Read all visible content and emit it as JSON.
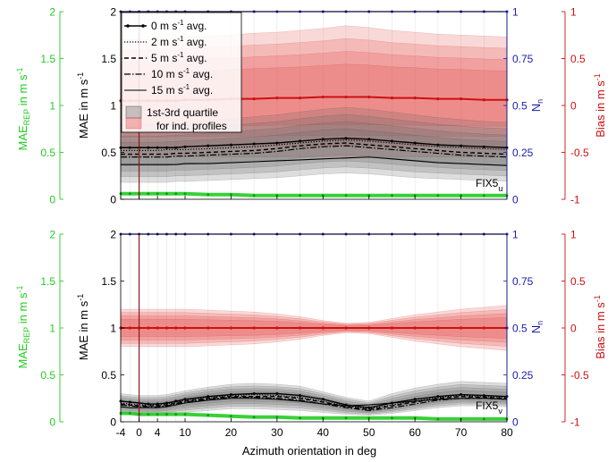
{
  "colors": {
    "mae_rep": "#22cc22",
    "nn": "#1a1aaa",
    "bias": "#cc1111",
    "mae": "#000000",
    "marker": "#8b1a1a"
  },
  "panels": [
    {
      "id": "top",
      "tag": "FIX5",
      "tag_sub": "u",
      "show_xticks": false
    },
    {
      "id": "bottom",
      "tag": "FIX5",
      "tag_sub": "v",
      "show_xticks": true
    }
  ],
  "axes": {
    "left_outer": {
      "label": "MAE",
      "label_sub": "REP",
      "label_rest": " in m s",
      "label_sup": "-1",
      "ticks": [
        "0",
        "0.5",
        "1",
        "1.5",
        "2"
      ]
    },
    "left_inner": {
      "label": "MAE in m s",
      "label_sup": "-1",
      "ticks": [
        "0",
        "0.5",
        "1",
        "1.5",
        "2"
      ]
    },
    "right_inner": {
      "label": "N",
      "label_sub": "n",
      "ticks": [
        "0",
        "0.25",
        "0.5",
        "0.75",
        "1"
      ]
    },
    "right_outer": {
      "label": "Bias in m s",
      "label_sup": "-1",
      "ticks": [
        "-1",
        "-0.5",
        "0",
        "0.5",
        "1"
      ]
    },
    "x": {
      "label": "Azimuth orientation in deg",
      "ticks": [
        "-4",
        "0",
        "4",
        "10",
        "20",
        "30",
        "40",
        "50",
        "60",
        "70",
        "80"
      ]
    }
  },
  "legend": {
    "items": [
      {
        "label": "0 m s",
        "sup": "-1",
        "suffix": " avg.",
        "style": "solid-dot"
      },
      {
        "label": "2 m s",
        "sup": "-1",
        "suffix": " avg.",
        "style": "dotted"
      },
      {
        "label": "5 m s",
        "sup": "-1",
        "suffix": " avg.",
        "style": "dashed"
      },
      {
        "label": "10 m s",
        "sup": "-1",
        "suffix": " avg.",
        "style": "dashdot"
      },
      {
        "label": "15 m s",
        "sup": "-1",
        "suffix": " avg.",
        "style": "solid"
      }
    ],
    "quartile_line1": "1st-3rd quartile",
    "quartile_line2": "for ind. profiles"
  },
  "chart_data": [
    {
      "type": "line",
      "panel": "FIX5 u",
      "x": [
        -4,
        -2,
        0,
        2,
        4,
        6,
        8,
        10,
        15,
        20,
        25,
        30,
        35,
        40,
        45,
        50,
        55,
        60,
        65,
        70,
        75,
        80
      ],
      "xlim": [
        -4,
        80
      ],
      "ylim_mae": [
        0,
        2
      ],
      "ylim_nn": [
        0,
        1
      ],
      "ylim_bias": [
        -1,
        1
      ],
      "mae_series": [
        {
          "name": "0 m s-1 avg.",
          "values": [
            0.55,
            0.55,
            0.55,
            0.55,
            0.55,
            0.55,
            0.55,
            0.56,
            0.57,
            0.58,
            0.59,
            0.6,
            0.62,
            0.64,
            0.65,
            0.64,
            0.62,
            0.6,
            0.58,
            0.57,
            0.56,
            0.55
          ]
        },
        {
          "name": "2 m s-1 avg.",
          "values": [
            0.52,
            0.52,
            0.52,
            0.52,
            0.52,
            0.53,
            0.53,
            0.53,
            0.54,
            0.55,
            0.56,
            0.58,
            0.6,
            0.62,
            0.63,
            0.62,
            0.6,
            0.58,
            0.56,
            0.55,
            0.54,
            0.53
          ]
        },
        {
          "name": "5 m s-1 avg.",
          "values": [
            0.48,
            0.48,
            0.48,
            0.48,
            0.48,
            0.48,
            0.49,
            0.49,
            0.5,
            0.51,
            0.52,
            0.54,
            0.57,
            0.59,
            0.6,
            0.58,
            0.56,
            0.54,
            0.52,
            0.5,
            0.49,
            0.48
          ]
        },
        {
          "name": "10 m s-1 avg.",
          "values": [
            0.45,
            0.45,
            0.45,
            0.45,
            0.45,
            0.45,
            0.46,
            0.46,
            0.47,
            0.48,
            0.49,
            0.51,
            0.54,
            0.56,
            0.57,
            0.55,
            0.53,
            0.51,
            0.49,
            0.47,
            0.46,
            0.45
          ]
        },
        {
          "name": "15 m s-1 avg.",
          "values": [
            0.37,
            0.37,
            0.37,
            0.37,
            0.37,
            0.37,
            0.37,
            0.38,
            0.38,
            0.39,
            0.4,
            0.41,
            0.42,
            0.43,
            0.44,
            0.45,
            0.43,
            0.41,
            0.39,
            0.38,
            0.37,
            0.36
          ]
        }
      ],
      "mae_quartile_band": {
        "low": [
          0.18,
          0.18,
          0.18,
          0.18,
          0.18,
          0.18,
          0.19,
          0.19,
          0.2,
          0.21,
          0.22,
          0.23,
          0.25,
          0.27,
          0.28,
          0.27,
          0.25,
          0.23,
          0.22,
          0.21,
          0.2,
          0.19
        ],
        "high": [
          0.8,
          0.8,
          0.8,
          0.8,
          0.8,
          0.81,
          0.81,
          0.82,
          0.84,
          0.86,
          0.88,
          0.9,
          0.93,
          0.96,
          0.98,
          0.96,
          0.93,
          0.9,
          0.87,
          0.85,
          0.83,
          0.82
        ]
      },
      "mae_rep": [
        0.06,
        0.06,
        0.06,
        0.06,
        0.06,
        0.06,
        0.06,
        0.06,
        0.05,
        0.05,
        0.04,
        0.04,
        0.04,
        0.04,
        0.04,
        0.04,
        0.04,
        0.04,
        0.04,
        0.04,
        0.04,
        0.04
      ],
      "nn": [
        1,
        1,
        1,
        1,
        1,
        1,
        1,
        1,
        1,
        1,
        1,
        1,
        1,
        1,
        1,
        1,
        1,
        1,
        1,
        1,
        1,
        1
      ],
      "bias_avg": [
        0.05,
        0.05,
        0.05,
        0.05,
        0.05,
        0.05,
        0.05,
        0.06,
        0.06,
        0.07,
        0.07,
        0.08,
        0.08,
        0.09,
        0.09,
        0.09,
        0.08,
        0.08,
        0.07,
        0.07,
        0.06,
        0.06
      ],
      "bias_quartile_band": {
        "low": [
          -0.55,
          -0.55,
          -0.55,
          -0.55,
          -0.55,
          -0.55,
          -0.55,
          -0.55,
          -0.55,
          -0.55,
          -0.55,
          -0.55,
          -0.55,
          -0.55,
          -0.55,
          -0.55,
          -0.55,
          -0.55,
          -0.55,
          -0.55,
          -0.55,
          -0.55
        ],
        "high": [
          0.7,
          0.7,
          0.7,
          0.7,
          0.7,
          0.71,
          0.72,
          0.73,
          0.74,
          0.75,
          0.77,
          0.78,
          0.8,
          0.82,
          0.85,
          0.83,
          0.8,
          0.78,
          0.76,
          0.75,
          0.74,
          0.73
        ]
      }
    },
    {
      "type": "line",
      "panel": "FIX5 v",
      "x": [
        -4,
        -2,
        0,
        2,
        4,
        6,
        8,
        10,
        15,
        20,
        25,
        30,
        35,
        40,
        45,
        50,
        55,
        60,
        65,
        70,
        75,
        80
      ],
      "xlim": [
        -4,
        80
      ],
      "xlabel": "Azimuth orientation in deg",
      "ylim_mae": [
        0,
        2
      ],
      "ylim_nn": [
        0,
        1
      ],
      "ylim_bias": [
        -1,
        1
      ],
      "mae_series": [
        {
          "name": "0 m s-1 avg.",
          "values": [
            0.22,
            0.21,
            0.2,
            0.19,
            0.19,
            0.2,
            0.22,
            0.24,
            0.27,
            0.29,
            0.3,
            0.3,
            0.28,
            0.24,
            0.18,
            0.15,
            0.2,
            0.24,
            0.27,
            0.29,
            0.28,
            0.27
          ]
        },
        {
          "name": "2 m s-1 avg.",
          "values": [
            0.2,
            0.19,
            0.18,
            0.18,
            0.18,
            0.19,
            0.21,
            0.23,
            0.26,
            0.28,
            0.29,
            0.28,
            0.26,
            0.22,
            0.17,
            0.14,
            0.18,
            0.22,
            0.26,
            0.28,
            0.27,
            0.26
          ]
        },
        {
          "name": "5 m s-1 avg.",
          "values": [
            0.19,
            0.18,
            0.17,
            0.17,
            0.17,
            0.18,
            0.2,
            0.22,
            0.25,
            0.27,
            0.27,
            0.27,
            0.25,
            0.21,
            0.16,
            0.13,
            0.17,
            0.21,
            0.25,
            0.27,
            0.26,
            0.25
          ]
        },
        {
          "name": "10 m s-1 avg.",
          "values": [
            0.18,
            0.17,
            0.16,
            0.16,
            0.16,
            0.17,
            0.19,
            0.21,
            0.24,
            0.26,
            0.26,
            0.25,
            0.23,
            0.19,
            0.15,
            0.12,
            0.15,
            0.19,
            0.23,
            0.25,
            0.25,
            0.24
          ]
        },
        {
          "name": "15 m s-1 avg.",
          "values": [
            0.16,
            0.15,
            0.15,
            0.15,
            0.15,
            0.16,
            0.18,
            0.2,
            0.23,
            0.25,
            0.25,
            0.24,
            0.22,
            0.19,
            0.17,
            0.18,
            0.2,
            0.22,
            0.24,
            0.25,
            0.25,
            0.24
          ]
        }
      ],
      "mae_quartile_band": {
        "low": [
          0.08,
          0.08,
          0.07,
          0.07,
          0.07,
          0.08,
          0.09,
          0.1,
          0.12,
          0.14,
          0.14,
          0.13,
          0.12,
          0.1,
          0.08,
          0.07,
          0.09,
          0.12,
          0.15,
          0.17,
          0.17,
          0.16
        ],
        "high": [
          0.3,
          0.29,
          0.28,
          0.28,
          0.28,
          0.29,
          0.31,
          0.33,
          0.37,
          0.4,
          0.41,
          0.4,
          0.38,
          0.32,
          0.26,
          0.22,
          0.3,
          0.36,
          0.4,
          0.43,
          0.42,
          0.41
        ]
      },
      "mae_rep": [
        0.09,
        0.09,
        0.08,
        0.08,
        0.08,
        0.08,
        0.08,
        0.08,
        0.07,
        0.06,
        0.05,
        0.05,
        0.04,
        0.04,
        0.04,
        0.04,
        0.04,
        0.04,
        0.03,
        0.03,
        0.03,
        0.03
      ],
      "nn": [
        1,
        1,
        1,
        1,
        1,
        1,
        1,
        1,
        1,
        1,
        1,
        1,
        1,
        1,
        1,
        1,
        1,
        1,
        1,
        1,
        1,
        1
      ],
      "bias_avg": [
        0.0,
        0.0,
        0.0,
        0.0,
        0.0,
        0.0,
        0.0,
        0.0,
        0.0,
        0.0,
        0.0,
        0.0,
        0.0,
        0.0,
        0.0,
        0.0,
        0.0,
        0.0,
        0.0,
        0.0,
        0.0,
        0.0
      ],
      "bias_quartile_band": {
        "low": [
          -0.2,
          -0.2,
          -0.2,
          -0.2,
          -0.2,
          -0.2,
          -0.2,
          -0.2,
          -0.19,
          -0.18,
          -0.17,
          -0.15,
          -0.12,
          -0.08,
          -0.05,
          -0.06,
          -0.1,
          -0.14,
          -0.17,
          -0.2,
          -0.22,
          -0.24
        ],
        "high": [
          0.2,
          0.2,
          0.2,
          0.2,
          0.2,
          0.2,
          0.2,
          0.2,
          0.19,
          0.18,
          0.17,
          0.15,
          0.12,
          0.08,
          0.05,
          0.06,
          0.1,
          0.14,
          0.17,
          0.2,
          0.22,
          0.24
        ]
      }
    }
  ]
}
